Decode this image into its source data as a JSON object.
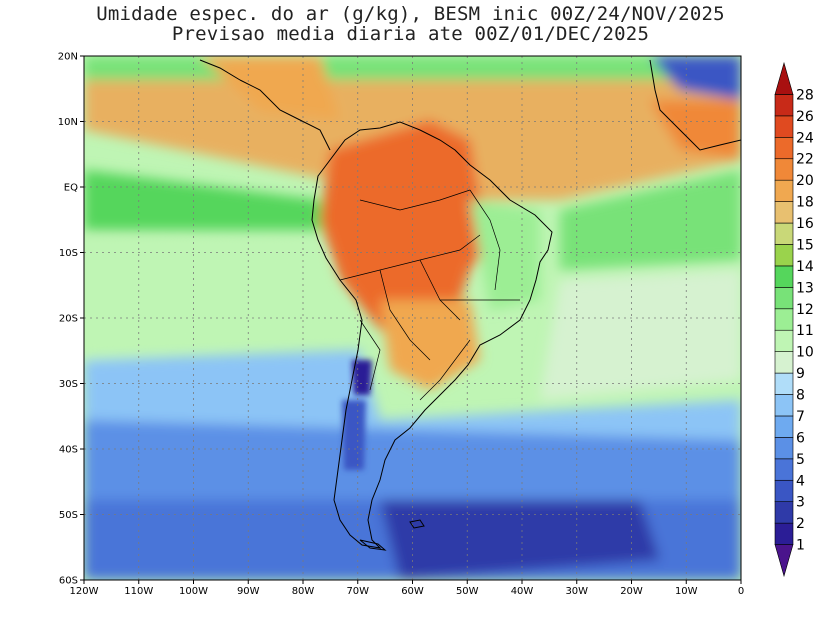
{
  "title": {
    "line1": "Umidade espec. do ar (g/kg), BESM inic 00Z/24/NOV/2025",
    "line2": "Previsao media diaria ate 00Z/01/DEC/2025"
  },
  "lat_labels": [
    "20N",
    "10N",
    "EQ",
    "10S",
    "20S",
    "30S",
    "40S",
    "50S",
    "60S"
  ],
  "lon_labels": [
    "120W",
    "110W",
    "100W",
    "90W",
    "80W",
    "70W",
    "60W",
    "50W",
    "40W",
    "30W",
    "20W",
    "10W",
    "0"
  ],
  "colorbar": {
    "levels": [
      "1",
      "2",
      "3",
      "4",
      "5",
      "6",
      "7",
      "8",
      "9",
      "10",
      "11",
      "12",
      "13",
      "14",
      "15",
      "16",
      "18",
      "20",
      "22",
      "24",
      "26",
      "28"
    ],
    "colors": [
      "#4a148c",
      "#2b1d96",
      "#2f3aa8",
      "#3a56c4",
      "#4a74d8",
      "#5b90e6",
      "#6eaaf0",
      "#8cc4f6",
      "#b0ddf9",
      "#d6f2d0",
      "#bff5b4",
      "#9cee94",
      "#78e278",
      "#55d65c",
      "#9ad34c",
      "#c9d878",
      "#e8c070",
      "#f0a850",
      "#f08838",
      "#ec6a2a",
      "#e04a20",
      "#c82a18",
      "#a81010"
    ]
  },
  "map_fields": {
    "ocean_far": "#9cee94",
    "ocean_mid": "#bff5b4",
    "ocean_near_eq": "#55d65c",
    "tropical_band": "#e8b060",
    "amazon_core": "#ec6a2a",
    "south_cool": "#6eaaf0",
    "south_cold": "#3a56c4",
    "south_coldest": "#2f3aa8",
    "andes_dry": "#2b1d96",
    "land_line": "#000000",
    "grid_line": "#7a7a7a"
  }
}
